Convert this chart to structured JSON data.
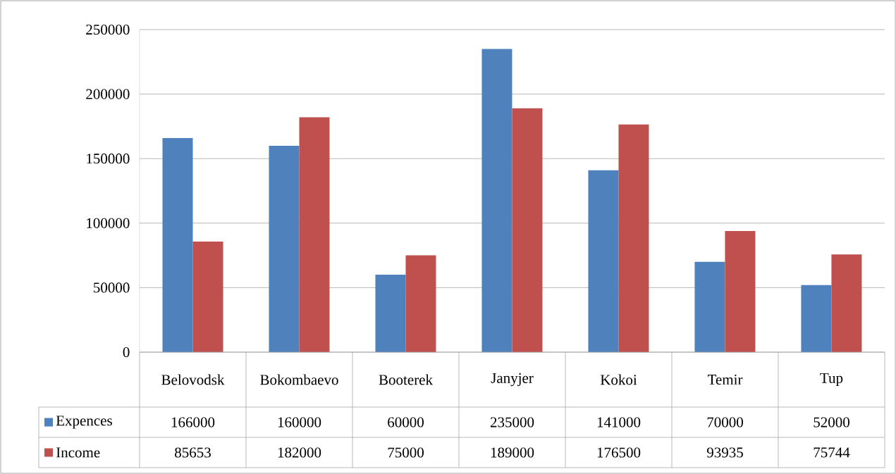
{
  "chart_data": {
    "type": "bar",
    "categories": [
      "Belovodsk",
      "Bokombaevo",
      "Booterek",
      "Janyjer",
      "Kokoi",
      "Temir",
      "Tup"
    ],
    "series": [
      {
        "name": "Expences",
        "color": "#4f81bd",
        "values": [
          166000,
          160000,
          60000,
          235000,
          141000,
          70000,
          52000
        ]
      },
      {
        "name": "Income",
        "color": "#c0504d",
        "values": [
          85653,
          182000,
          75000,
          189000,
          176500,
          93935,
          75744
        ]
      }
    ],
    "ylim": [
      0,
      250000
    ],
    "yticks": [
      0,
      50000,
      100000,
      150000,
      200000,
      250000
    ],
    "grid": "y",
    "data_labels": true,
    "legend": "bottom"
  }
}
